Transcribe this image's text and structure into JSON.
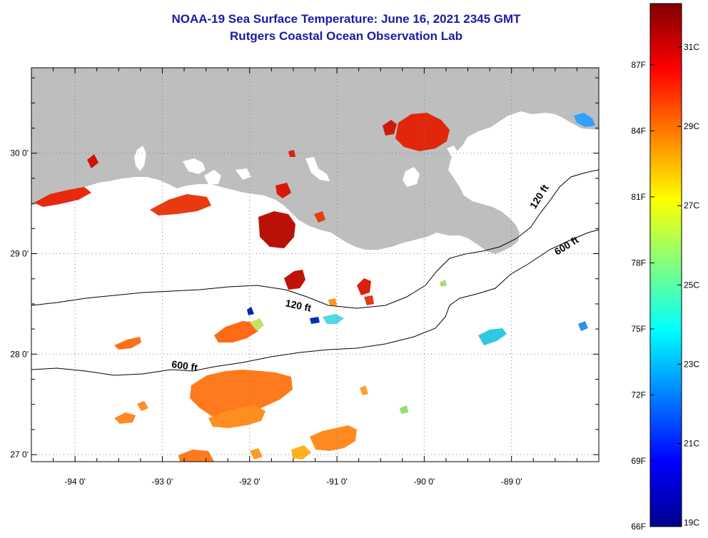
{
  "title": {
    "line1": "NOAA-19 Sea Surface Temperature:  June 16, 2021 2345 GMT",
    "line2": "Rutgers Coastal Ocean Observation Lab"
  },
  "map": {
    "longitude_ticks": [
      {
        "value": -94,
        "label": "-94 0'"
      },
      {
        "value": -93,
        "label": "-93 0'"
      },
      {
        "value": -92,
        "label": "-92 0'"
      },
      {
        "value": -91,
        "label": "-91 0'"
      },
      {
        "value": -90,
        "label": "-90 0'"
      },
      {
        "value": -89,
        "label": "-89 0'"
      }
    ],
    "latitude_ticks": [
      {
        "value": 30,
        "label": "30 0'"
      },
      {
        "value": 29,
        "label": "29 0'"
      },
      {
        "value": 28,
        "label": "28 0'"
      },
      {
        "value": 27,
        "label": "27 0'"
      }
    ],
    "extent": {
      "lon_min": -94.5,
      "lon_max": -88.0,
      "lat_min": 26.93,
      "lat_max": 30.85
    },
    "land_color": "#bebebe",
    "contour_labels": [
      {
        "text": "120 ft",
        "lon": -91.45,
        "lat": 28.45,
        "angle": 12
      },
      {
        "text": "600 ft",
        "lon": -92.75,
        "lat": 27.85,
        "angle": 8
      },
      {
        "text": "120 ft",
        "lon": -88.65,
        "lat": 29.55,
        "angle": -58
      },
      {
        "text": "600 ft",
        "lon": -88.35,
        "lat": 29.05,
        "angle": -32
      }
    ]
  },
  "colorbar": {
    "fahrenheit_labels": [
      {
        "value": 87,
        "label": "87F"
      },
      {
        "value": 84,
        "label": "84F"
      },
      {
        "value": 81,
        "label": "81F"
      },
      {
        "value": 78,
        "label": "78F"
      },
      {
        "value": 75,
        "label": "75F"
      },
      {
        "value": 72,
        "label": "72F"
      },
      {
        "value": 69,
        "label": "69F"
      },
      {
        "value": 66,
        "label": "66F"
      }
    ],
    "celsius_labels": [
      {
        "value": 31,
        "label": "31C"
      },
      {
        "value": 29,
        "label": "29C"
      },
      {
        "value": 27,
        "label": "27C"
      },
      {
        "value": 25,
        "label": "25C"
      },
      {
        "value": 23,
        "label": "23C"
      },
      {
        "value": 21,
        "label": "21C"
      },
      {
        "value": 19,
        "label": "19C"
      }
    ],
    "range_c": [
      18.9,
      32.1
    ],
    "colors": [
      "#00008f",
      "#0000ff",
      "#0080ff",
      "#00ffff",
      "#80ff80",
      "#ffff00",
      "#ff8000",
      "#ff0000",
      "#800000"
    ]
  }
}
